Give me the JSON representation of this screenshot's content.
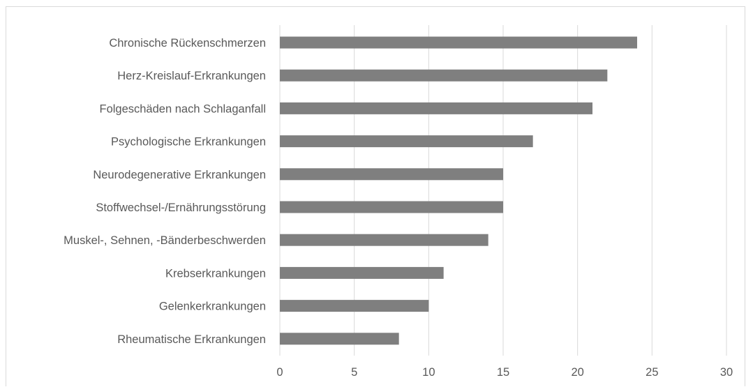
{
  "chart_data": {
    "type": "bar",
    "orientation": "horizontal",
    "categories": [
      "Chronische Rückenschmerzen",
      "Herz-Kreislauf-Erkrankungen",
      "Folgeschäden nach Schlaganfall",
      "Psychologische Erkrankungen",
      "Neurodegenerative Erkrankungen",
      "Stoffwechsel-/Ernährungsstörung",
      "Muskel-, Sehnen, -Bänderbeschwerden",
      "Krebserkrankungen",
      "Gelenkerkrankungen",
      "Rheumatische Erkrankungen"
    ],
    "values": [
      24,
      22,
      21,
      17,
      15,
      15,
      14,
      11,
      10,
      8
    ],
    "xlim": [
      0,
      30
    ],
    "xticks": [
      "0",
      "5",
      "10",
      "15",
      "20",
      "25",
      "30"
    ],
    "grid": "vertical",
    "bar_color": "#7f7f7f",
    "grid_color": "#d9d9d9",
    "title": "",
    "xlabel": "",
    "ylabel": ""
  }
}
